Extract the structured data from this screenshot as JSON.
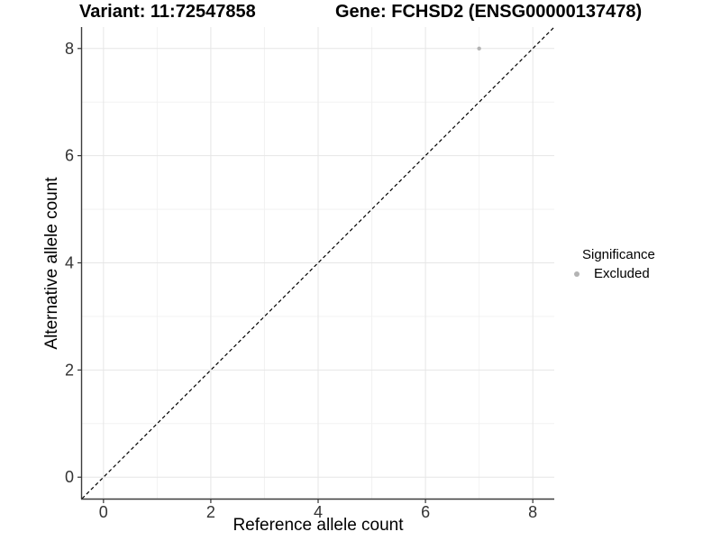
{
  "title": {
    "variant": "Variant: 11:72547858",
    "gene": "Gene: FCHSD2 (ENSG00000137478)"
  },
  "legend": {
    "title": "Significance",
    "items": [
      {
        "label": "Excluded",
        "color": "#b3b3b3"
      }
    ]
  },
  "chart_data": {
    "type": "scatter",
    "title": "Variant: 11:72547858   Gene: FCHSD2 (ENSG00000137478)",
    "xlabel": "Reference allele count",
    "ylabel": "Alternative allele count",
    "xlim": [
      -0.4,
      8.4
    ],
    "ylim": [
      -0.4,
      8.4
    ],
    "x_ticks": [
      0,
      2,
      4,
      6,
      8
    ],
    "y_ticks": [
      0,
      2,
      4,
      6,
      8
    ],
    "x_minor_ticks": [
      1,
      3,
      5,
      7
    ],
    "y_minor_ticks": [
      1,
      3,
      5,
      7
    ],
    "grid": true,
    "legend_position": "right",
    "series": [
      {
        "name": "Excluded",
        "points": [
          {
            "x": 7,
            "y": 8
          }
        ],
        "color": "#b3b3b3"
      }
    ],
    "reference_line": {
      "type": "identity",
      "from": [
        -0.4,
        -0.4
      ],
      "to": [
        8.4,
        8.4
      ],
      "style": "dashed",
      "color": "#000000"
    },
    "style": {
      "major_grid_color": "#e6e6e6",
      "minor_grid_color": "#f2f2f2",
      "axis_line_color": "#3c3c3c",
      "tick_color": "#333333",
      "point_radius": 2.2,
      "legend_dot_color": "#b3b3b3"
    }
  }
}
